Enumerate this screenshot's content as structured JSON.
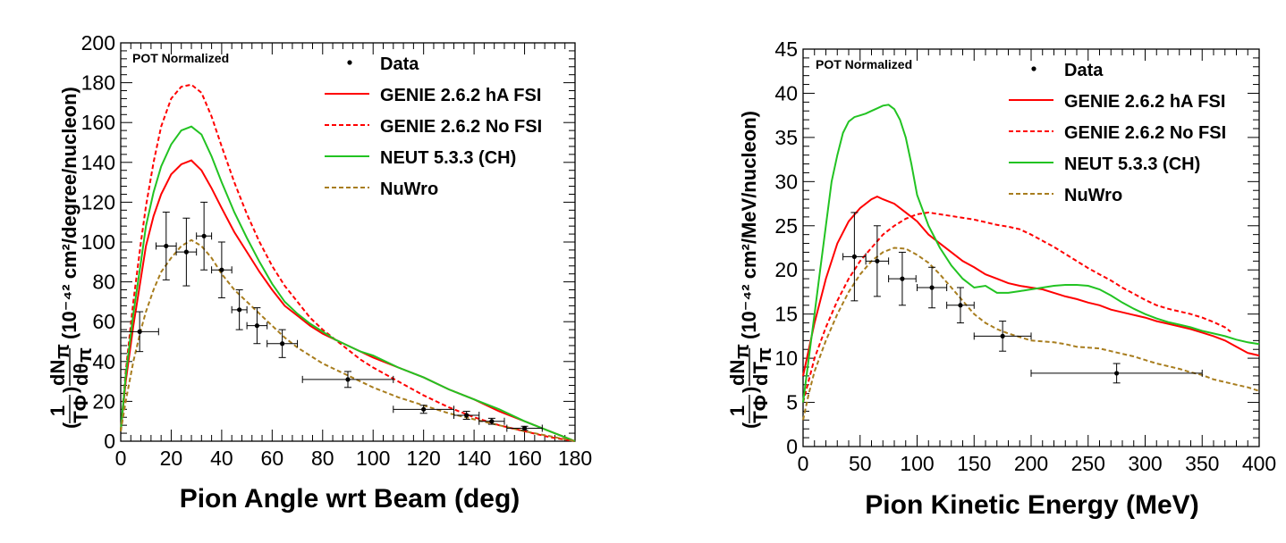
{
  "colors": {
    "data": "#000000",
    "genie_ha": "#ff0000",
    "genie_nofsi": "#ff0000",
    "neut": "#22c322",
    "nuwro": "#a87d1e"
  },
  "chart_data": [
    {
      "type": "line",
      "annotation": "POT Normalized",
      "xlabel": "Pion Angle wrt Beam (deg)",
      "ylabel_text": "(10⁻⁴² cm²/degree/nucleon)",
      "xlim": [
        0,
        180
      ],
      "ylim": [
        0,
        200
      ],
      "xticks": [
        0,
        20,
        40,
        60,
        80,
        100,
        120,
        140,
        160,
        180
      ],
      "yticks": [
        0,
        20,
        40,
        60,
        80,
        100,
        120,
        140,
        160,
        180,
        200
      ],
      "grid": false,
      "legend_position": "top-right",
      "legend": [
        "Data",
        "GENIE 2.6.2 hA FSI",
        "GENIE 2.6.2 No FSI",
        "NEUT 5.3.3 (CH)",
        "NuWro"
      ],
      "data_points": [
        {
          "x": 7.5,
          "y": 55,
          "xerr": 7.5,
          "yerr": 10
        },
        {
          "x": 18,
          "y": 98,
          "xerr": 4,
          "yerr": 17
        },
        {
          "x": 26,
          "y": 95,
          "xerr": 4,
          "yerr": 17
        },
        {
          "x": 33,
          "y": 103,
          "xerr": 3,
          "yerr": 17
        },
        {
          "x": 40,
          "y": 86,
          "xerr": 4,
          "yerr": 14
        },
        {
          "x": 47,
          "y": 66,
          "xerr": 3,
          "yerr": 10
        },
        {
          "x": 54,
          "y": 58,
          "xerr": 4,
          "yerr": 9
        },
        {
          "x": 64,
          "y": 49,
          "xerr": 6,
          "yerr": 7
        },
        {
          "x": 90,
          "y": 31,
          "xerr": 18,
          "yerr": 4
        },
        {
          "x": 120,
          "y": 16,
          "xerr": 12,
          "yerr": 2
        },
        {
          "x": 137,
          "y": 13,
          "xerr": 5,
          "yerr": 2
        },
        {
          "x": 147,
          "y": 10,
          "xerr": 5,
          "yerr": 1.5
        },
        {
          "x": 160,
          "y": 6.5,
          "xerr": 7,
          "yerr": 1
        }
      ],
      "series": [
        {
          "name": "GENIE 2.6.2 hA FSI",
          "style": "solid",
          "color_key": "genie_ha",
          "x": [
            0,
            2,
            5,
            8,
            10,
            13,
            16,
            20,
            24,
            28,
            32,
            36,
            40,
            45,
            50,
            55,
            60,
            65,
            70,
            75,
            80,
            85,
            90,
            95,
            100,
            110,
            120,
            130,
            140,
            150,
            160,
            170,
            180
          ],
          "y": [
            5,
            30,
            58,
            82,
            98,
            113,
            124,
            134,
            139,
            141,
            136,
            127,
            117,
            105,
            95,
            85,
            76,
            68,
            63,
            58,
            54,
            51,
            48,
            45,
            42,
            37,
            32,
            26,
            21,
            15,
            10,
            5,
            0
          ]
        },
        {
          "name": "GENIE 2.6.2 No FSI",
          "style": "dashed",
          "color_key": "genie_nofsi",
          "x": [
            0,
            2,
            5,
            8,
            10,
            13,
            16,
            20,
            24,
            28,
            32,
            36,
            40,
            45,
            50,
            55,
            60,
            65,
            70,
            75,
            80,
            85,
            90,
            95,
            100,
            110,
            120,
            130,
            140,
            150,
            160,
            170,
            180
          ],
          "y": [
            5,
            35,
            70,
            100,
            118,
            140,
            158,
            172,
            178,
            179,
            175,
            163,
            148,
            130,
            114,
            100,
            88,
            78,
            70,
            62,
            56,
            51,
            46,
            41,
            37,
            30,
            23,
            17,
            12,
            8,
            5,
            2,
            0
          ]
        },
        {
          "name": "NEUT 5.3.3 (CH)",
          "style": "solid",
          "color_key": "neut",
          "x": [
            0,
            2,
            5,
            8,
            10,
            13,
            16,
            20,
            24,
            28,
            32,
            36,
            40,
            45,
            50,
            55,
            60,
            65,
            70,
            75,
            80,
            85,
            90,
            95,
            100,
            110,
            120,
            130,
            140,
            150,
            160,
            170,
            180
          ],
          "y": [
            5,
            33,
            64,
            90,
            108,
            125,
            138,
            149,
            156,
            158,
            154,
            143,
            130,
            115,
            102,
            90,
            79,
            70,
            64,
            59,
            55,
            51,
            48,
            45,
            43,
            37,
            32,
            26,
            21,
            16,
            10,
            5,
            0
          ]
        },
        {
          "name": "NuWro",
          "style": "dashed",
          "color_key": "nuwro",
          "x": [
            0,
            2,
            5,
            8,
            10,
            13,
            16,
            20,
            24,
            28,
            32,
            36,
            40,
            45,
            50,
            55,
            60,
            65,
            70,
            75,
            80,
            85,
            90,
            95,
            100,
            110,
            120,
            130,
            140,
            150,
            160,
            170,
            180
          ],
          "y": [
            5,
            20,
            40,
            56,
            65,
            76,
            85,
            92,
            98,
            101,
            98,
            92,
            84,
            76,
            70,
            64,
            58,
            52,
            47,
            43,
            39,
            36,
            33,
            30,
            27,
            22,
            18,
            14,
            11,
            8,
            5,
            2.5,
            0
          ]
        }
      ]
    },
    {
      "type": "line",
      "annotation": "POT Normalized",
      "xlabel": "Pion Kinetic Energy (MeV)",
      "ylabel_text": "(10⁻⁴² cm²/MeV/nucleon)",
      "xlim": [
        0,
        400
      ],
      "ylim": [
        0,
        45
      ],
      "xticks": [
        0,
        50,
        100,
        150,
        200,
        250,
        300,
        350,
        400
      ],
      "yticks": [
        0,
        5,
        10,
        15,
        20,
        25,
        30,
        35,
        40,
        45
      ],
      "grid": false,
      "legend_position": "top-right",
      "legend": [
        "Data",
        "GENIE 2.6.2 hA FSI",
        "GENIE 2.6.2 No FSI",
        "NEUT 5.3.3 (CH)",
        "NuWro"
      ],
      "data_points": [
        {
          "x": 45,
          "y": 21.5,
          "xerr": 10,
          "yerr": 5
        },
        {
          "x": 65,
          "y": 21,
          "xerr": 10,
          "yerr": 4
        },
        {
          "x": 87,
          "y": 19,
          "xerr": 12,
          "yerr": 3
        },
        {
          "x": 113,
          "y": 18,
          "xerr": 13,
          "yerr": 2.3
        },
        {
          "x": 138,
          "y": 16,
          "xerr": 12,
          "yerr": 2
        },
        {
          "x": 175,
          "y": 12.5,
          "xerr": 25,
          "yerr": 1.7
        },
        {
          "x": 275,
          "y": 8.3,
          "xerr": 75,
          "yerr": 1.1
        }
      ],
      "series": [
        {
          "name": "GENIE 2.6.2 hA FSI",
          "style": "solid",
          "color_key": "genie_ha",
          "x": [
            0,
            5,
            10,
            20,
            30,
            40,
            50,
            60,
            65,
            70,
            80,
            90,
            100,
            110,
            120,
            130,
            140,
            150,
            160,
            170,
            180,
            190,
            200,
            210,
            220,
            230,
            240,
            250,
            260,
            270,
            280,
            290,
            300,
            310,
            320,
            330,
            340,
            350,
            360,
            370,
            380,
            390,
            400
          ],
          "y": [
            8,
            11,
            14,
            19,
            23,
            25.5,
            27,
            28,
            28.3,
            28,
            27.5,
            26.5,
            25.5,
            24,
            23,
            22,
            21,
            20.3,
            19.5,
            19,
            18.5,
            18.2,
            18,
            17.8,
            17.4,
            17,
            16.7,
            16.3,
            16,
            15.5,
            15.2,
            14.9,
            14.6,
            14.2,
            13.9,
            13.6,
            13.3,
            12.9,
            12.5,
            12,
            11.3,
            10.6,
            10.3
          ]
        },
        {
          "name": "GENIE 2.6.2 No FSI",
          "style": "dashed",
          "color_key": "genie_nofsi",
          "x": [
            0,
            5,
            10,
            20,
            30,
            40,
            50,
            60,
            70,
            80,
            90,
            100,
            110,
            120,
            130,
            140,
            150,
            160,
            170,
            180,
            190,
            200,
            210,
            220,
            230,
            240,
            250,
            260,
            270,
            280,
            290,
            300,
            310,
            320,
            330,
            340,
            350,
            360,
            370,
            375
          ],
          "y": [
            5,
            7.5,
            10,
            13.5,
            16.5,
            19,
            21,
            22.5,
            24,
            25,
            25.8,
            26.3,
            26.5,
            26.3,
            26.1,
            25.9,
            25.7,
            25.4,
            25.1,
            24.9,
            24.6,
            24,
            23.3,
            22.6,
            21.8,
            21,
            20.2,
            19.5,
            18.8,
            18,
            17.3,
            16.6,
            16,
            15.6,
            15.3,
            15,
            14.6,
            14.1,
            13.5,
            13
          ]
        },
        {
          "name": "NEUT 5.3.3 (CH)",
          "style": "solid",
          "color_key": "neut",
          "x": [
            0,
            5,
            10,
            15,
            20,
            25,
            30,
            35,
            40,
            45,
            50,
            55,
            60,
            65,
            70,
            75,
            80,
            85,
            90,
            95,
            100,
            110,
            120,
            130,
            140,
            150,
            160,
            170,
            180,
            190,
            200,
            210,
            220,
            230,
            240,
            250,
            260,
            270,
            280,
            290,
            300,
            310,
            320,
            330,
            340,
            350,
            360,
            370,
            380,
            390,
            400
          ],
          "y": [
            5,
            10,
            15,
            20,
            25,
            30,
            33,
            35.5,
            36.8,
            37.3,
            37.5,
            37.7,
            38,
            38.3,
            38.6,
            38.7,
            38.2,
            37,
            35,
            32,
            28.5,
            25,
            22.5,
            20.5,
            19,
            18,
            18.2,
            17.4,
            17.4,
            17.6,
            17.8,
            18,
            18.2,
            18.3,
            18.3,
            18.2,
            17.8,
            17.1,
            16.3,
            15.6,
            15,
            14.5,
            14.1,
            13.8,
            13.5,
            13.1,
            12.8,
            12.5,
            12.1,
            11.8,
            11.6
          ]
        },
        {
          "name": "NuWro",
          "style": "dashed",
          "color_key": "nuwro",
          "x": [
            0,
            5,
            10,
            20,
            30,
            40,
            50,
            60,
            70,
            80,
            90,
            100,
            110,
            120,
            130,
            140,
            150,
            160,
            170,
            180,
            190,
            200,
            210,
            220,
            230,
            240,
            250,
            260,
            270,
            280,
            290,
            300,
            310,
            320,
            330,
            340,
            350,
            360,
            370,
            380,
            390,
            400
          ],
          "y": [
            3,
            6,
            8.5,
            12,
            15,
            17.5,
            19.5,
            21,
            22,
            22.5,
            22.4,
            21.7,
            20.8,
            19.5,
            18,
            16.5,
            15,
            14,
            13.3,
            12.8,
            12.4,
            12,
            11.9,
            11.8,
            11.6,
            11.3,
            11.2,
            11.1,
            10.8,
            10.5,
            10.2,
            9.8,
            9.4,
            9.1,
            8.8,
            8.4,
            8.1,
            7.6,
            7.3,
            7,
            6.7,
            6.3
          ]
        }
      ]
    }
  ]
}
